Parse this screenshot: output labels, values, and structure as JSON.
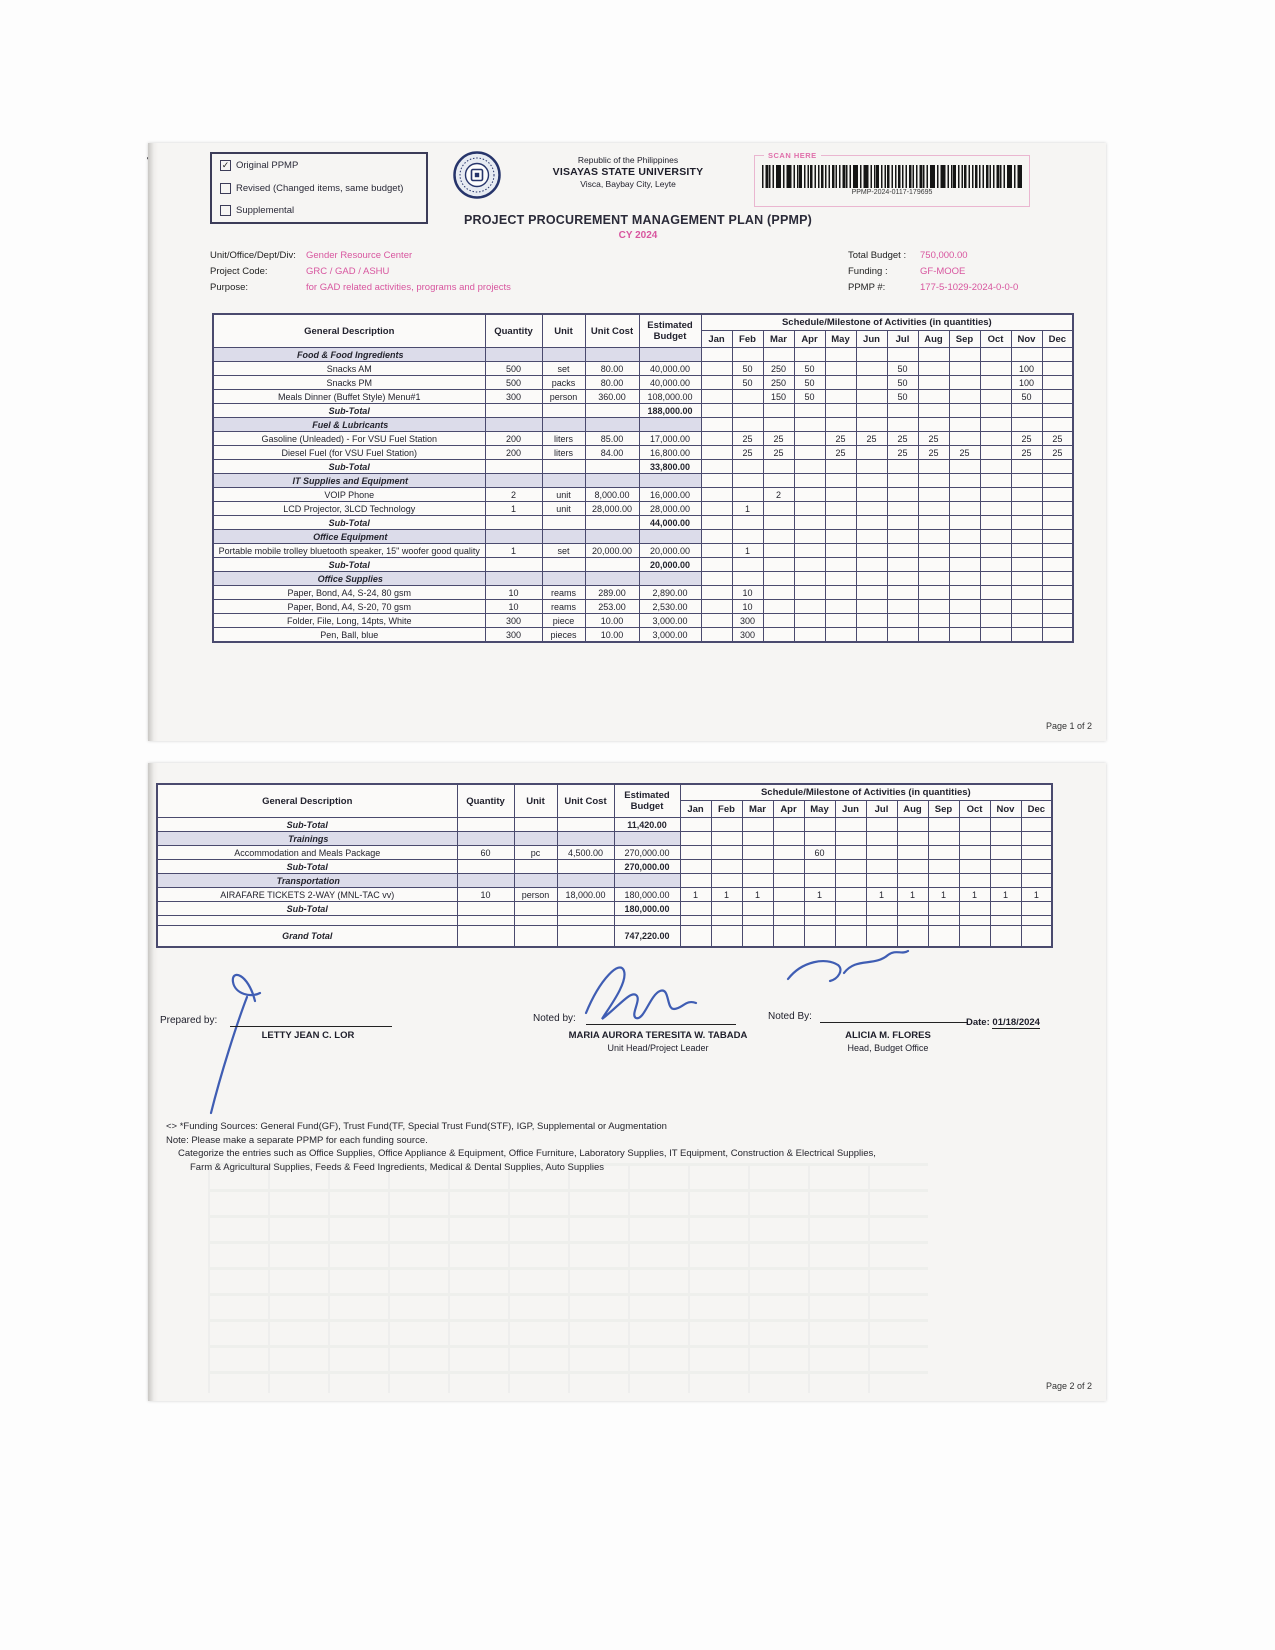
{
  "palette": {
    "accent_pink": "#d8569f",
    "table_border": "#4a4a6e",
    "section_bg": "#dcdcea",
    "ink_blue": "#2f4fae"
  },
  "checkbox_panel": {
    "options": [
      {
        "label": "Original PPMP",
        "mark": "✓"
      },
      {
        "label": "Revised (Changed items, same budget)",
        "mark": ""
      },
      {
        "label": "Supplemental",
        "mark": ""
      }
    ]
  },
  "header": {
    "republic": "Republic of the Philippines",
    "university": "VISAYAS STATE UNIVERSITY",
    "address": "Visca, Baybay City, Leyte",
    "title": "PROJECT PROCUREMENT MANAGEMENT PLAN (PPMP)",
    "cy": "CY 2024",
    "scan_here": "SCAN HERE",
    "barcode_text": "PPMP-2024-0117-179695"
  },
  "info": {
    "unit_label": "Unit/Office/Dept/Div:",
    "unit_value": "Gender Resource Center",
    "project_code_label": "Project Code:",
    "project_code_value": "GRC / GAD / ASHU",
    "purpose_label": "Purpose:",
    "purpose_value": "for GAD related activities, programs and projects",
    "total_budget_label": "Total Budget :",
    "total_budget_value": "750,000.00",
    "funding_label": "Funding :",
    "funding_value": "GF-MOOE",
    "ppmp_label": "PPMP #:",
    "ppmp_value": "177-5-1029-2024-0-0-0"
  },
  "table": {
    "headers": {
      "desc": "General Description",
      "qty": "Quantity",
      "unit": "Unit",
      "cost": "Unit Cost",
      "budget": "Estimated Budget",
      "schedule": "Schedule/Milestone of Activities (in quantities)"
    },
    "months": [
      "Jan",
      "Feb",
      "Mar",
      "Apr",
      "May",
      "Jun",
      "Jul",
      "Aug",
      "Sep",
      "Oct",
      "Nov",
      "Dec"
    ]
  },
  "page1": {
    "page_label": "Page 1 of 2",
    "rows": [
      {
        "type": "section",
        "desc": "Food & Food Ingredients"
      },
      {
        "type": "item",
        "desc": "Snacks AM",
        "qty": "500",
        "unit": "set",
        "cost": "80.00",
        "budget": "40,000.00",
        "sched": [
          "",
          "50",
          "250",
          "50",
          "",
          "",
          "50",
          "",
          "",
          "",
          "100",
          ""
        ]
      },
      {
        "type": "item",
        "desc": "Snacks PM",
        "qty": "500",
        "unit": "packs",
        "cost": "80.00",
        "budget": "40,000.00",
        "sched": [
          "",
          "50",
          "250",
          "50",
          "",
          "",
          "50",
          "",
          "",
          "",
          "100",
          ""
        ]
      },
      {
        "type": "item",
        "desc": "Meals Dinner (Buffet Style) Menu#1",
        "qty": "300",
        "unit": "person",
        "cost": "360.00",
        "budget": "108,000.00",
        "sched": [
          "",
          "",
          "150",
          "50",
          "",
          "",
          "50",
          "",
          "",
          "",
          "50",
          ""
        ]
      },
      {
        "type": "subtotal",
        "desc": "Sub-Total",
        "budget": "188,000.00"
      },
      {
        "type": "section",
        "desc": "Fuel & Lubricants"
      },
      {
        "type": "item",
        "desc": "Gasoline (Unleaded) - For VSU Fuel Station",
        "qty": "200",
        "unit": "liters",
        "cost": "85.00",
        "budget": "17,000.00",
        "sched": [
          "",
          "25",
          "25",
          "",
          "25",
          "25",
          "25",
          "25",
          "",
          "",
          "25",
          "25"
        ]
      },
      {
        "type": "item",
        "desc": "Diesel Fuel (for VSU Fuel Station)",
        "qty": "200",
        "unit": "liters",
        "cost": "84.00",
        "budget": "16,800.00",
        "sched": [
          "",
          "25",
          "25",
          "",
          "25",
          "",
          "25",
          "25",
          "25",
          "",
          "25",
          "25"
        ]
      },
      {
        "type": "subtotal",
        "desc": "Sub-Total",
        "budget": "33,800.00"
      },
      {
        "type": "section",
        "desc": "IT Supplies and Equipment"
      },
      {
        "type": "item",
        "desc": "VOIP Phone",
        "qty": "2",
        "unit": "unit",
        "cost": "8,000.00",
        "budget": "16,000.00",
        "sched": [
          "",
          "",
          "2",
          "",
          "",
          "",
          "",
          "",
          "",
          "",
          "",
          ""
        ]
      },
      {
        "type": "item",
        "desc": "LCD Projector, 3LCD Technology",
        "qty": "1",
        "unit": "unit",
        "cost": "28,000.00",
        "budget": "28,000.00",
        "sched": [
          "",
          "1",
          "",
          "",
          "",
          "",
          "",
          "",
          "",
          "",
          "",
          ""
        ]
      },
      {
        "type": "subtotal",
        "desc": "Sub-Total",
        "budget": "44,000.00"
      },
      {
        "type": "section",
        "desc": "Office Equipment"
      },
      {
        "type": "item",
        "desc": "Portable mobile trolley bluetooth speaker, 15\" woofer good quality",
        "qty": "1",
        "unit": "set",
        "cost": "20,000.00",
        "budget": "20,000.00",
        "sched": [
          "",
          "1",
          "",
          "",
          "",
          "",
          "",
          "",
          "",
          "",
          "",
          ""
        ]
      },
      {
        "type": "subtotal",
        "desc": "Sub-Total",
        "budget": "20,000.00"
      },
      {
        "type": "section",
        "desc": "Office Supplies"
      },
      {
        "type": "item",
        "desc": "Paper, Bond, A4, S-24, 80 gsm",
        "qty": "10",
        "unit": "reams",
        "cost": "289.00",
        "budget": "2,890.00",
        "sched": [
          "",
          "10",
          "",
          "",
          "",
          "",
          "",
          "",
          "",
          "",
          "",
          ""
        ]
      },
      {
        "type": "item",
        "desc": "Paper, Bond, A4, S-20, 70 gsm",
        "qty": "10",
        "unit": "reams",
        "cost": "253.00",
        "budget": "2,530.00",
        "sched": [
          "",
          "10",
          "",
          "",
          "",
          "",
          "",
          "",
          "",
          "",
          "",
          ""
        ]
      },
      {
        "type": "item",
        "desc": "Folder, File, Long, 14pts, White",
        "qty": "300",
        "unit": "piece",
        "cost": "10.00",
        "budget": "3,000.00",
        "sched": [
          "",
          "300",
          "",
          "",
          "",
          "",
          "",
          "",
          "",
          "",
          "",
          ""
        ]
      },
      {
        "type": "item",
        "desc": "Pen, Ball, blue",
        "qty": "300",
        "unit": "pieces",
        "cost": "10.00",
        "budget": "3,000.00",
        "sched": [
          "",
          "300",
          "",
          "",
          "",
          "",
          "",
          "",
          "",
          "",
          "",
          ""
        ]
      }
    ]
  },
  "page2": {
    "page_label": "Page 2 of 2",
    "rows": [
      {
        "type": "subtotal",
        "desc": "Sub-Total",
        "budget": "11,420.00"
      },
      {
        "type": "section",
        "desc": "Trainings"
      },
      {
        "type": "item",
        "desc": "Accommodation and Meals Package",
        "qty": "60",
        "unit": "pc",
        "cost": "4,500.00",
        "budget": "270,000.00",
        "sched": [
          "",
          "",
          "",
          "",
          "60",
          "",
          "",
          "",
          "",
          "",
          "",
          ""
        ]
      },
      {
        "type": "subtotal",
        "desc": "Sub-Total",
        "budget": "270,000.00"
      },
      {
        "type": "section",
        "desc": "Transportation"
      },
      {
        "type": "item",
        "desc": "AIRAFARE TICKETS 2-WAY (MNL-TAC vv)",
        "qty": "10",
        "unit": "person",
        "cost": "18,000.00",
        "budget": "180,000.00",
        "sched": [
          "1",
          "1",
          "1",
          "",
          "1",
          "",
          "1",
          "1",
          "1",
          "1",
          "1",
          "1"
        ]
      },
      {
        "type": "subtotal",
        "desc": "Sub-Total",
        "budget": "180,000.00"
      },
      {
        "type": "empty"
      },
      {
        "type": "grandtotal",
        "desc": "Grand Total",
        "budget": "747,220.00"
      }
    ]
  },
  "signatures": {
    "prepared_label": "Prepared by:",
    "prepared_name": "LETTY JEAN C. LOR",
    "noted1_label": "Noted by:",
    "noted1_name": "MARIA AURORA TERESITA W. TABADA",
    "noted1_title": "Unit Head/Project Leader",
    "noted2_label": "Noted By:",
    "noted2_name": "ALICIA M. FLORES",
    "noted2_title": "Head, Budget Office",
    "date_label": "Date:",
    "date_value": "01/18/2024"
  },
  "notes": [
    "<> *Funding Sources: General Fund(GF), Trust Fund(TF, Special Trust Fund(STF), IGP, Supplemental or Augmentation",
    "Note: Please make a separate PPMP for each funding source.",
    "Categorize the entries such as Office Supplies, Office Appliance & Equipment, Office Furniture, Laboratory Supplies, IT Equipment, Construction & Electrical Supplies,",
    "Farm & Agricultural Supplies, Feeds & Feed Ingredients, Medical & Dental Supplies, Auto Supplies"
  ]
}
